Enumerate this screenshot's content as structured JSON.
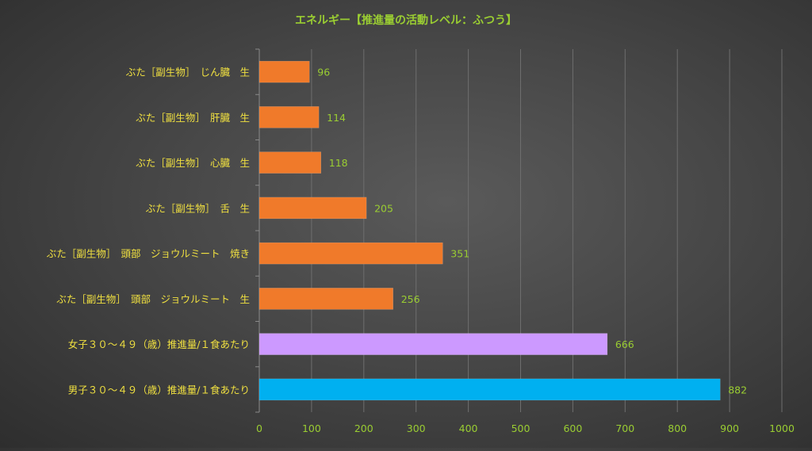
{
  "chart_data": {
    "type": "bar",
    "orientation": "horizontal",
    "title": "エネルギー【推進量の活動レベル：ふつう】",
    "categories": [
      "ぶた［副生物］　じん臓　生",
      "ぶた［副生物］　肝臓　生",
      "ぶた［副生物］　心臓　生",
      "ぶた［副生物］　舌　生",
      "ぶた［副生物］　頭部　ジョウルミート　焼き",
      "ぶた［副生物］　頭部　ジョウルミート　生",
      "女子３０～４９（歳）推進量/１食あたり",
      "男子３０～４９（歳）推進量/１食あたり"
    ],
    "values": [
      96,
      114,
      118,
      205,
      351,
      256,
      666,
      882
    ],
    "bar_colors": [
      "#f07a2a",
      "#f07a2a",
      "#f07a2a",
      "#f07a2a",
      "#f07a2a",
      "#f07a2a",
      "#cc99ff",
      "#00b0f0"
    ],
    "xlim": [
      0,
      1000
    ],
    "xticks": [
      0,
      100,
      200,
      300,
      400,
      500,
      600,
      700,
      800,
      900,
      1000
    ],
    "grid": true,
    "legend": "none",
    "colors": {
      "title": "#9acd32",
      "category_text": "#f0e040",
      "value_text": "#9acd32",
      "tick_text": "#9acd32"
    }
  }
}
